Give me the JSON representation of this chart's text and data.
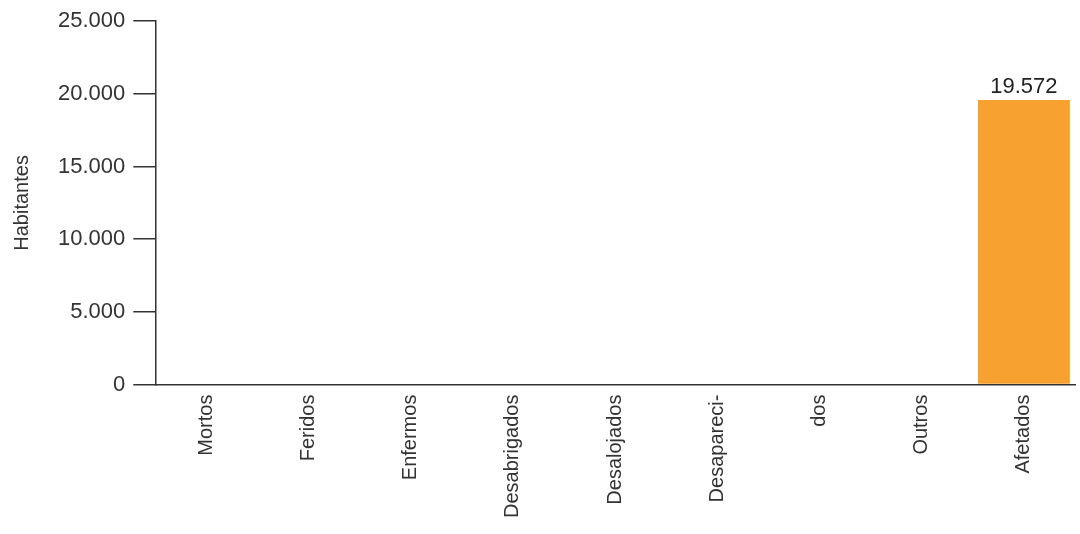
{
  "chart_data": {
    "type": "bar",
    "ylabel": "Habitantes",
    "categories": [
      "Mortos",
      "Feridos",
      "Enfermos",
      "Desabrigados",
      "Desalojados",
      "Desapareci-",
      "dos",
      "Outros",
      "Afetados"
    ],
    "values": [
      0,
      0,
      0,
      0,
      0,
      0,
      0,
      0,
      19572
    ],
    "value_labels": [
      null,
      null,
      null,
      null,
      null,
      null,
      null,
      null,
      "19.572"
    ],
    "color": "#f7a131",
    "ylim": [
      0,
      25000
    ],
    "yticks": [
      0,
      {
        "value": 5000,
        "label": "5.000"
      },
      {
        "value": 10000,
        "label": "10.000"
      },
      {
        "value": 15000,
        "label": "15.000"
      },
      {
        "value": 20000,
        "label": "20.000"
      },
      {
        "value": 25000,
        "label": "25.000"
      }
    ]
  }
}
